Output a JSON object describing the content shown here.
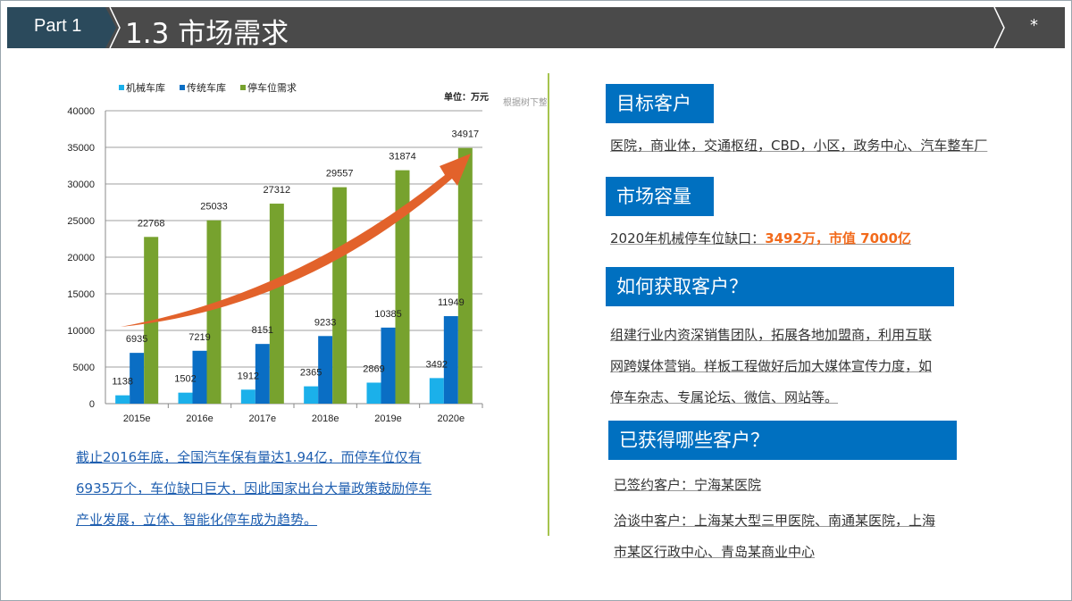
{
  "header": {
    "part": "Part 1",
    "title": "1.3 市场需求",
    "star": "*"
  },
  "chart_data": {
    "type": "bar",
    "categories": [
      "2015e",
      "2016e",
      "2017e",
      "2018e",
      "2019e",
      "2020e"
    ],
    "series": [
      {
        "name": "机械车库",
        "color": "#1bb0ea",
        "values": [
          1138,
          1502,
          1912,
          2365,
          2869,
          3492
        ]
      },
      {
        "name": "传统车库",
        "color": "#0a6ec4",
        "values": [
          6935,
          7219,
          8151,
          9233,
          10385,
          11949
        ]
      },
      {
        "name": "停车位需求",
        "color": "#77a22e",
        "values": [
          22768,
          25033,
          27312,
          29557,
          31874,
          34917
        ]
      }
    ],
    "ylim": [
      0,
      40000
    ],
    "yticks": [
      0,
      5000,
      10000,
      15000,
      20000,
      25000,
      30000,
      35000,
      40000
    ],
    "unit": "单位：万元",
    "source": "根据树下整理",
    "legend": "top-left",
    "grid": true,
    "arrow_color": "#e2622b"
  },
  "note": [
    "截止2016年底，全国汽车保有量达1.94亿，而停车位仅有",
    "6935万个，车位缺口巨大，因此国家出台大量政策鼓励停车",
    "产业发展，立体、智能化停车成为趋势。"
  ],
  "sections": {
    "target": {
      "title": "目标客户",
      "text": "医院，商业体，交通枢纽，CBD，小区，政务中心、汽车整车厂"
    },
    "capacity": {
      "title": "市场容量",
      "prefix": "2020年机械停车位缺口：",
      "highlight": "3492万，市值 7000亿"
    },
    "acquire": {
      "title": "如何获取客户？",
      "lines": [
        "组建行业内资深销售团队，拓展各地加盟商，利用互联",
        "网跨媒体营销。样板工程做好后加大媒体宣传力度，如",
        "停车杂志、专属论坛、微信、网站等。"
      ]
    },
    "obtained": {
      "title": "已获得哪些客户？",
      "signed": "已签约客户：宁海某医院",
      "negotiating": [
        "洽谈中客户：上海某大型三甲医院、南通某医院，上海",
        "市某区行政中心、青岛某商业中心"
      ]
    }
  }
}
